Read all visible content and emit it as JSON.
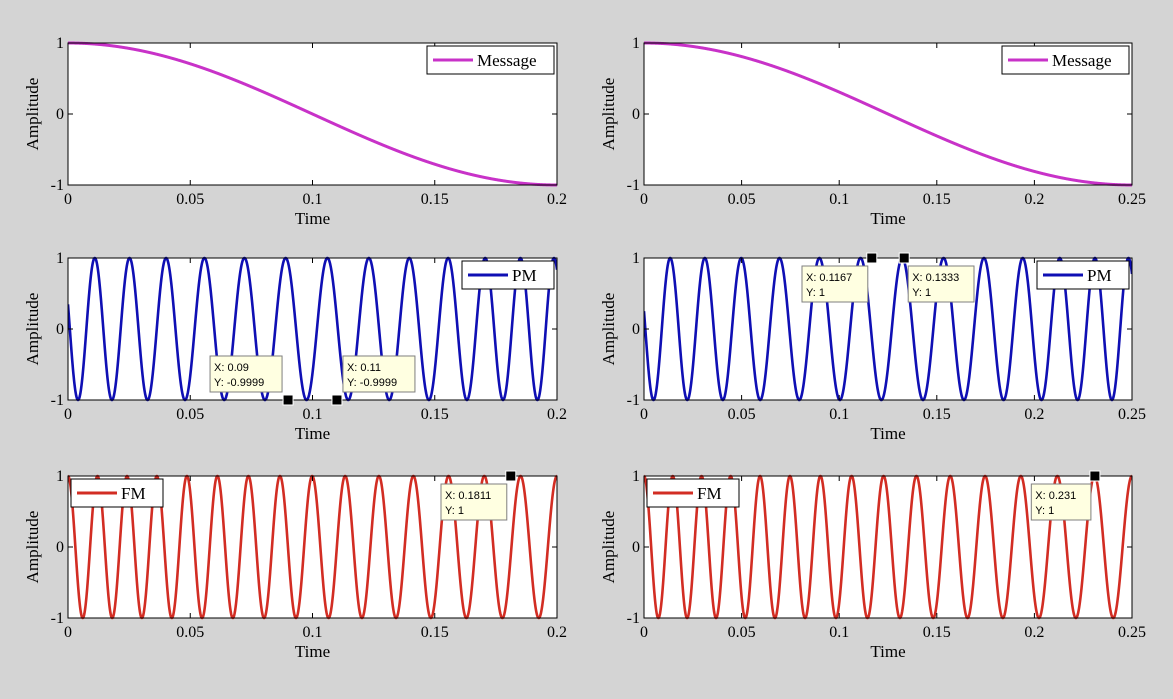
{
  "chart_data": [
    {
      "id": "msg-a",
      "type": "line",
      "signal": "message",
      "legend": "Message",
      "legend_pos": "top-right",
      "xlabel": "Time",
      "ylabel": "Amplitude",
      "xlim": [
        0,
        0.2
      ],
      "ylim": [
        -1,
        1
      ],
      "xticks": [
        "0",
        "0.05",
        "0.1",
        "0.15",
        "0.2"
      ],
      "xtick_values": [
        0,
        0.05,
        0.1,
        0.15,
        0.2
      ],
      "yticks": [
        "-1",
        "0",
        "1"
      ],
      "ytick_values": [
        -1,
        0,
        1
      ],
      "series": [
        {
          "name": "Message",
          "fn": "cos(2*pi*2.5*t)",
          "color": "#c832c8"
        }
      ],
      "datatips": []
    },
    {
      "id": "msg-b",
      "type": "line",
      "signal": "message",
      "legend": "Message",
      "legend_pos": "top-right",
      "xlabel": "Time",
      "ylabel": "Amplitude",
      "xlim": [
        0,
        0.25
      ],
      "ylim": [
        -1,
        1
      ],
      "xticks": [
        "0",
        "0.05",
        "0.1",
        "0.15",
        "0.2",
        "0.25"
      ],
      "xtick_values": [
        0,
        0.05,
        0.1,
        0.15,
        0.2,
        0.25
      ],
      "yticks": [
        "-1",
        "0",
        "1"
      ],
      "ytick_values": [
        -1,
        0,
        1
      ],
      "series": [
        {
          "name": "Message",
          "fn": "cos(2*pi*2*t)",
          "color": "#c832c8"
        }
      ],
      "datatips": []
    },
    {
      "id": "pm-a",
      "type": "line",
      "signal": "pm",
      "legend": "PM",
      "legend_pos": "top-right",
      "xlabel": "Time",
      "ylabel": "Amplitude",
      "xlim": [
        0,
        0.2
      ],
      "ylim": [
        -1,
        1
      ],
      "xticks": [
        "0",
        "0.05",
        "0.1",
        "0.15",
        "0.2"
      ],
      "xtick_values": [
        0,
        0.05,
        0.1,
        0.15,
        0.2
      ],
      "yticks": [
        "-1",
        "0",
        "1"
      ],
      "ytick_values": [
        -1,
        0,
        1
      ],
      "series": [
        {
          "name": "PM",
          "fn": "cos(2*pi*75*t + 6.6*cos(2*pi*2.5*t) + 0.9)",
          "color": "#0f0fb4"
        }
      ],
      "datatips": [
        {
          "x": 0.09,
          "y": -0.9999,
          "x_label": "X: 0.09",
          "y_label": "Y: -0.9999",
          "side": "above-left"
        },
        {
          "x": 0.11,
          "y": -0.9999,
          "x_label": "X: 0.11",
          "y_label": "Y: -0.9999",
          "side": "above-right"
        }
      ]
    },
    {
      "id": "pm-b",
      "type": "line",
      "signal": "pm",
      "legend": "PM",
      "legend_pos": "top-right",
      "xlabel": "Time",
      "ylabel": "Amplitude",
      "xlim": [
        0,
        0.25
      ],
      "ylim": [
        -1,
        1
      ],
      "xticks": [
        "0",
        "0.05",
        "0.1",
        "0.15",
        "0.2",
        "0.25"
      ],
      "xtick_values": [
        0,
        0.05,
        0.1,
        0.15,
        0.2,
        0.25
      ],
      "yticks": [
        "-1",
        "0",
        "1"
      ],
      "ytick_values": [
        -1,
        0,
        1
      ],
      "series": [
        {
          "name": "PM",
          "fn": "cos(2*pi*60*t + 6.6*cos(2*pi*2*t) + 1.0)",
          "color": "#0f0fb4"
        }
      ],
      "datatips": [
        {
          "x": 0.1167,
          "y": 1,
          "x_label": "X: 0.1167",
          "y_label": "Y: 1",
          "side": "below-left"
        },
        {
          "x": 0.1333,
          "y": 1,
          "x_label": "X: 0.1333",
          "y_label": "Y: 1",
          "side": "below-right"
        }
      ]
    },
    {
      "id": "fm-a",
      "type": "line",
      "signal": "fm",
      "legend": "FM",
      "legend_pos": "top-left",
      "xlabel": "Time",
      "ylabel": "Amplitude",
      "xlim": [
        0,
        0.2
      ],
      "ylim": [
        -1,
        1
      ],
      "xticks": [
        "0",
        "0.05",
        "0.1",
        "0.15",
        "0.2"
      ],
      "xtick_values": [
        0,
        0.05,
        0.1,
        0.15,
        0.2
      ],
      "yticks": [
        "-1",
        "0",
        "1"
      ],
      "ytick_values": [
        -1,
        0,
        1
      ],
      "series": [
        {
          "name": "FM",
          "fn": "cos(2*pi*75*t + 3.2*sin(2*pi*2.5*t))",
          "color": "#d22d23"
        }
      ],
      "datatips": [
        {
          "x": 0.1811,
          "y": 1,
          "x_label": "X: 0.1811",
          "y_label": "Y: 1",
          "side": "below-left"
        }
      ]
    },
    {
      "id": "fm-b",
      "type": "line",
      "signal": "fm",
      "legend": "FM",
      "legend_pos": "top-left",
      "xlabel": "Time",
      "ylabel": "Amplitude",
      "xlim": [
        0,
        0.25
      ],
      "ylim": [
        -1,
        1
      ],
      "xticks": [
        "0",
        "0.05",
        "0.1",
        "0.15",
        "0.2",
        "0.25"
      ],
      "xtick_values": [
        0,
        0.05,
        0.1,
        0.15,
        0.2,
        0.25
      ],
      "yticks": [
        "-1",
        "0",
        "1"
      ],
      "ytick_values": [
        -1,
        0,
        1
      ],
      "series": [
        {
          "name": "FM",
          "fn": "cos(2*pi*60*t + 4*sin(2*pi*2*t))",
          "color": "#d22d23"
        }
      ],
      "datatips": [
        {
          "x": 0.231,
          "y": 1,
          "x_label": "X: 0.231",
          "y_label": "Y: 1",
          "side": "below-left"
        }
      ]
    }
  ],
  "colors": {
    "figure_background": "#d4d4d4",
    "axes_background": "#ffffff",
    "datatip_fill": "#ffffe1",
    "datatip_border": "#7f7f7f"
  }
}
